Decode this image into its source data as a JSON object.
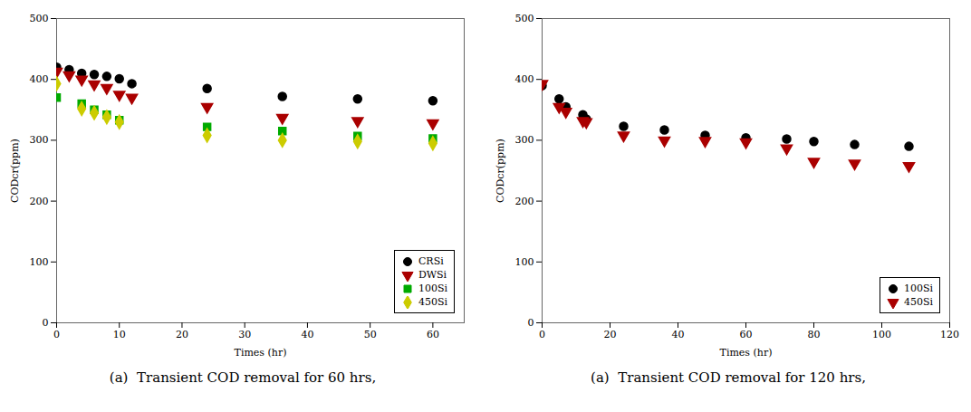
{
  "chart_data": [
    {
      "type": "scatter",
      "caption": "(a)  Transient COD removal for 60 hrs,",
      "x_label": "Times (hr)",
      "y_label": "CODcr(ppm)",
      "xlim": [
        0,
        65
      ],
      "ylim": [
        0,
        500
      ],
      "xticks": [
        0,
        10,
        20,
        30,
        40,
        50,
        60
      ],
      "yticks": [
        0,
        100,
        200,
        300,
        400,
        500
      ],
      "legend": "lower right",
      "series": [
        {
          "name": "CRSi",
          "color": "black",
          "marker": "circle",
          "x": [
            0,
            2,
            4,
            6,
            8,
            10,
            12,
            24,
            36,
            48,
            60
          ],
          "values": [
            420,
            416,
            410,
            408,
            405,
            401,
            393,
            385,
            372,
            368,
            365
          ]
        },
        {
          "name": "DWSi",
          "color": "#AA0000",
          "marker": "triangle_down",
          "x": [
            0,
            2,
            4,
            6,
            8,
            10,
            12,
            24,
            36,
            48,
            60
          ],
          "values": [
            413,
            407,
            400,
            392,
            386,
            375,
            370,
            355,
            337,
            332,
            328
          ]
        },
        {
          "name": "100Si",
          "color": "#00AA00",
          "marker": "square",
          "x": [
            0,
            4,
            6,
            8,
            10,
            24,
            36,
            48,
            60
          ],
          "values": [
            370,
            360,
            350,
            342,
            333,
            322,
            315,
            307,
            303
          ]
        },
        {
          "name": "450Si",
          "color": "#CCCC00",
          "marker": "diamond",
          "x": [
            0,
            4,
            6,
            8,
            10,
            24,
            36,
            48,
            60
          ],
          "values": [
            393,
            352,
            345,
            338,
            330,
            308,
            300,
            298,
            295
          ]
        }
      ]
    },
    {
      "type": "scatter",
      "caption": "(a)  Transient COD removal for 120 hrs,",
      "x_label": "Times (hr)",
      "y_label": "CODcr(ppm)",
      "xlim": [
        0,
        120
      ],
      "ylim": [
        0,
        500
      ],
      "xticks": [
        0,
        20,
        40,
        60,
        80,
        100,
        120
      ],
      "yticks": [
        0,
        100,
        200,
        300,
        400,
        500
      ],
      "legend": "lower right",
      "series": [
        {
          "name": "100Si",
          "color": "black",
          "marker": "circle",
          "x": [
            0,
            5,
            7,
            12,
            13,
            24,
            36,
            48,
            60,
            72,
            80,
            92,
            108
          ],
          "values": [
            390,
            368,
            355,
            342,
            335,
            323,
            317,
            308,
            304,
            302,
            298,
            293,
            290
          ]
        },
        {
          "name": "450Si",
          "color": "#AA0000",
          "marker": "triangle_down",
          "x": [
            0,
            5,
            7,
            12,
            13,
            24,
            36,
            48,
            60,
            72,
            80,
            92,
            108
          ],
          "values": [
            393,
            355,
            347,
            332,
            330,
            308,
            300,
            299,
            297,
            287,
            265,
            262,
            258
          ]
        }
      ]
    }
  ]
}
